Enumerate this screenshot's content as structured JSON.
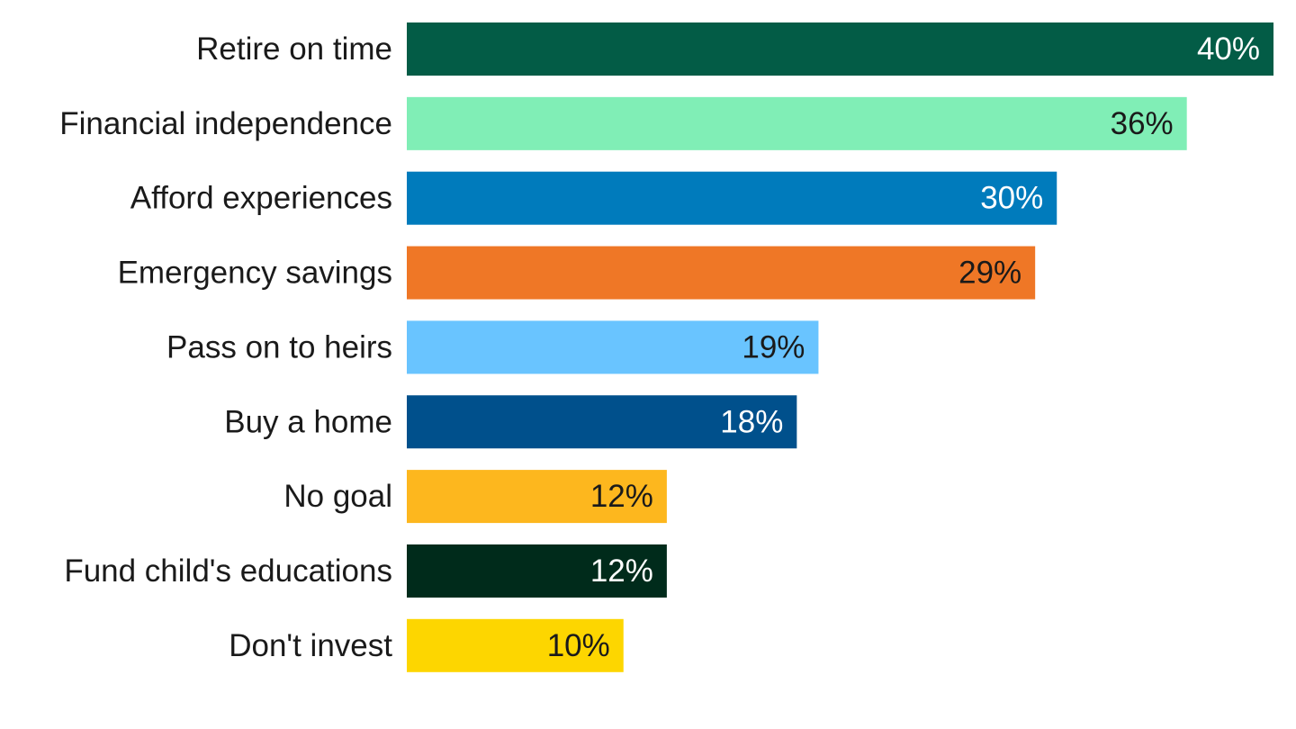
{
  "chart_data": {
    "type": "bar",
    "orientation": "horizontal",
    "categories": [
      "Retire on time",
      "Financial independence",
      "Afford experiences",
      "Emergency savings",
      "Pass on to heirs",
      "Buy a home",
      "No goal",
      "Fund child's educations",
      "Don't invest"
    ],
    "values": [
      40,
      36,
      30,
      29,
      19,
      18,
      12,
      12,
      10
    ],
    "value_labels": [
      "40%",
      "36%",
      "30%",
      "29%",
      "19%",
      "18%",
      "12%",
      "12%",
      "10%"
    ],
    "colors": [
      "#035c46",
      "#80eeb6",
      "#007bbc",
      "#ef7726",
      "#69c4ff",
      "#00508c",
      "#fdb71e",
      "#002b1b",
      "#fdd600"
    ],
    "label_colors": [
      "#ffffff",
      "#1a1a1a",
      "#ffffff",
      "#1a1a1a",
      "#1a1a1a",
      "#ffffff",
      "#1a1a1a",
      "#ffffff",
      "#1a1a1a"
    ],
    "xlim": [
      0,
      40
    ],
    "axes_visible": false,
    "grid": false,
    "legend": "none"
  }
}
